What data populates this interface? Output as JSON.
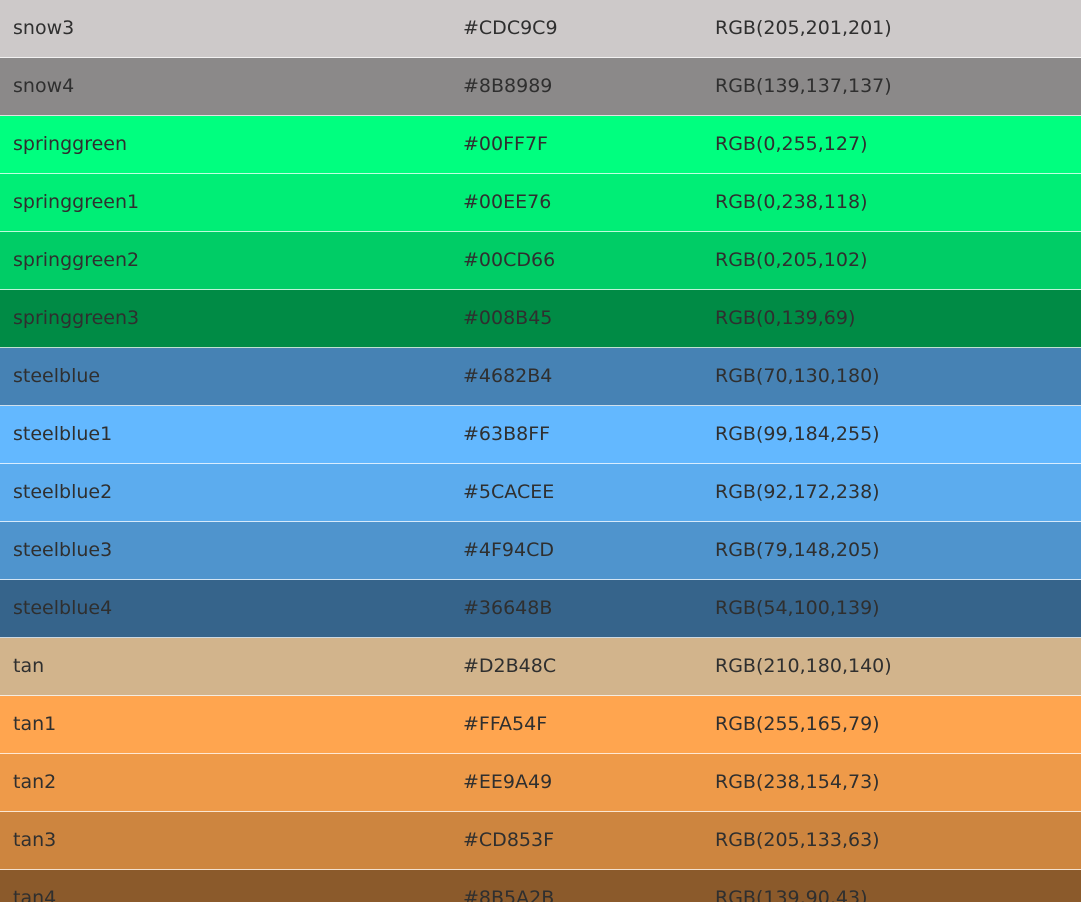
{
  "rows": [
    {
      "name": "snow3",
      "hex": "#CDC9C9",
      "rgb": "RGB(205,201,201)",
      "swatch": "#CDC9C9"
    },
    {
      "name": "snow4",
      "hex": "#8B8989",
      "rgb": "RGB(139,137,137)",
      "swatch": "#8B8989"
    },
    {
      "name": "springgreen",
      "hex": "#00FF7F",
      "rgb": "RGB(0,255,127)",
      "swatch": "#00FF7F"
    },
    {
      "name": "springgreen1",
      "hex": "#00EE76",
      "rgb": "RGB(0,238,118)",
      "swatch": "#00EE76"
    },
    {
      "name": "springgreen2",
      "hex": "#00CD66",
      "rgb": "RGB(0,205,102)",
      "swatch": "#00CD66"
    },
    {
      "name": "springgreen3",
      "hex": "#008B45",
      "rgb": "RGB(0,139,69)",
      "swatch": "#008B45"
    },
    {
      "name": "steelblue",
      "hex": "#4682B4",
      "rgb": "RGB(70,130,180)",
      "swatch": "#4682B4"
    },
    {
      "name": "steelblue1",
      "hex": "#63B8FF",
      "rgb": "RGB(99,184,255)",
      "swatch": "#63B8FF"
    },
    {
      "name": "steelblue2",
      "hex": "#5CACEE",
      "rgb": "RGB(92,172,238)",
      "swatch": "#5CACEE"
    },
    {
      "name": "steelblue3",
      "hex": "#4F94CD",
      "rgb": "RGB(79,148,205)",
      "swatch": "#4F94CD"
    },
    {
      "name": "steelblue4",
      "hex": "#36648B",
      "rgb": "RGB(54,100,139)",
      "swatch": "#36648B"
    },
    {
      "name": "tan",
      "hex": "#D2B48C",
      "rgb": "RGB(210,180,140)",
      "swatch": "#D2B48C"
    },
    {
      "name": "tan1",
      "hex": "#FFA54F",
      "rgb": "RGB(255,165,79)",
      "swatch": "#FFA54F"
    },
    {
      "name": "tan2",
      "hex": "#EE9A49",
      "rgb": "RGB(238,154,73)",
      "swatch": "#EE9A49"
    },
    {
      "name": "tan3",
      "hex": "#CD853F",
      "rgb": "RGB(205,133,63)",
      "swatch": "#CD853F"
    },
    {
      "name": "tan4",
      "hex": "#8B5A2B",
      "rgb": "RGB(139,90,43)",
      "swatch": "#8B5A2B"
    }
  ]
}
